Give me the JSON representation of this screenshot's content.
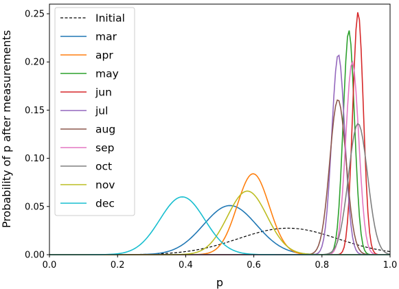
{
  "chart_data": {
    "type": "line",
    "xlabel": "p",
    "ylabel": "Probability of p after measurements",
    "xlim": [
      0.0,
      1.0
    ],
    "ylim": [
      0.0,
      0.26
    ],
    "xticks": [
      "0.0",
      "0.2",
      "0.4",
      "0.6",
      "0.8",
      "1.0"
    ],
    "yticks": [
      "0.00",
      "0.05",
      "0.10",
      "0.15",
      "0.20",
      "0.25"
    ],
    "grid": false,
    "legend_position": "upper-left",
    "series": [
      {
        "name": "Initial",
        "color": "#000000",
        "dashed": true,
        "shape": "gauss",
        "mu": 0.7,
        "sigma": 0.145,
        "peak": 0.0275
      },
      {
        "name": "mar",
        "color": "#1f77b4",
        "dashed": false,
        "shape": "gauss",
        "mu": 0.53,
        "sigma": 0.078,
        "peak": 0.051
      },
      {
        "name": "apr",
        "color": "#ff7f0e",
        "dashed": false,
        "shape": "gauss",
        "mu": 0.598,
        "sigma": 0.047,
        "peak": 0.084
      },
      {
        "name": "may",
        "color": "#2ca02c",
        "dashed": false,
        "shape": "gauss",
        "mu": 0.879,
        "sigma": 0.0165,
        "peak": 0.233
      },
      {
        "name": "jun",
        "color": "#d62728",
        "dashed": false,
        "shape": "gauss",
        "mu": 0.906,
        "sigma": 0.0155,
        "peak": 0.252
      },
      {
        "name": "jul",
        "color": "#9467bd",
        "dashed": false,
        "shape": "gauss",
        "mu": 0.848,
        "sigma": 0.019,
        "peak": 0.208
      },
      {
        "name": "aug",
        "color": "#8c564b",
        "dashed": false,
        "shape": "gauss",
        "mu": 0.847,
        "sigma": 0.024,
        "peak": 0.161
      },
      {
        "name": "sep",
        "color": "#e377c2",
        "dashed": false,
        "shape": "gauss",
        "mu": 0.889,
        "sigma": 0.019,
        "peak": 0.2
      },
      {
        "name": "oct",
        "color": "#7f7f7f",
        "dashed": false,
        "shape": "gauss",
        "mu": 0.906,
        "sigma": 0.028,
        "peak": 0.136
      },
      {
        "name": "nov",
        "color": "#bcbd22",
        "dashed": false,
        "shape": "gauss",
        "mu": 0.581,
        "sigma": 0.058,
        "peak": 0.066
      },
      {
        "name": "dec",
        "color": "#17becf",
        "dashed": false,
        "shape": "gauss",
        "mu": 0.39,
        "sigma": 0.066,
        "peak": 0.06
      }
    ]
  }
}
